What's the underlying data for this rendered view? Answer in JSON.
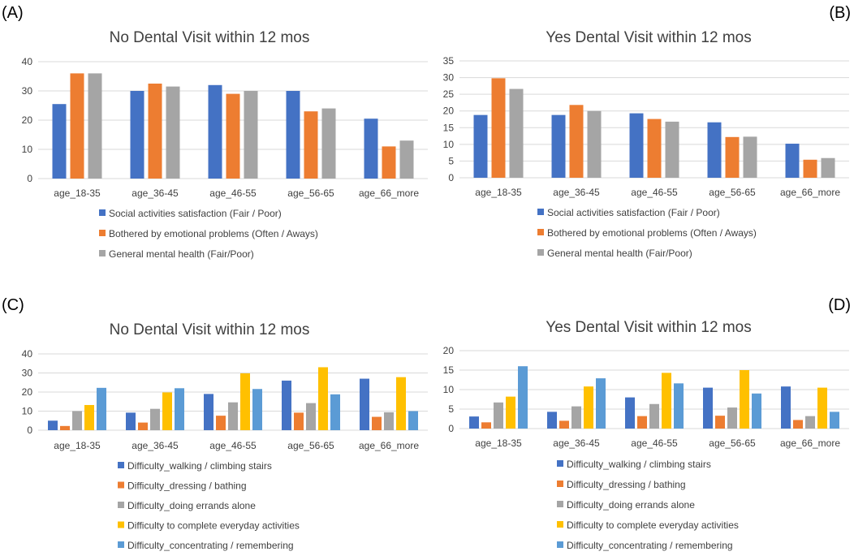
{
  "figure": {
    "panel_labels": [
      "(A)",
      "(B)",
      "(C)",
      "(D)"
    ]
  },
  "colors": {
    "blue": "#4472C4",
    "orange": "#ED7D31",
    "gray": "#A5A5A5",
    "yellow": "#FFC000",
    "lightblue": "#5B9BD5"
  },
  "chart_data": [
    {
      "panel": "(A)",
      "type": "bar",
      "title": "No Dental Visit within 12 mos",
      "categories": [
        "age_18-35",
        "age_36-45",
        "age_46-55",
        "age_56-65",
        "age_66_more"
      ],
      "ylim": [
        0,
        40
      ],
      "yticks": [
        0,
        10,
        20,
        30,
        40
      ],
      "grid": true,
      "legend_position": "bottom",
      "series": [
        {
          "name": "Social activities satisfaction (Fair / Poor)",
          "color": "#4472C4",
          "values": [
            25.5,
            30,
            32,
            30,
            20.5
          ]
        },
        {
          "name": "Bothered by emotional problems (Often / Aways)",
          "color": "#ED7D31",
          "values": [
            36,
            32.5,
            29,
            23,
            11
          ]
        },
        {
          "name": "General mental health (Fair/Poor)",
          "color": "#A5A5A5",
          "values": [
            36,
            31.5,
            30,
            24,
            13
          ]
        }
      ]
    },
    {
      "panel": "(B)",
      "type": "bar",
      "title": "Yes Dental Visit within 12 mos",
      "categories": [
        "age_18-35",
        "age_36-45",
        "age_46-55",
        "age_56-65",
        "age_66_more"
      ],
      "ylim": [
        0,
        35
      ],
      "yticks": [
        0,
        5,
        10,
        15,
        20,
        25,
        30,
        35
      ],
      "grid": true,
      "legend_position": "bottom",
      "series": [
        {
          "name": "Social activities satisfaction (Fair / Poor)",
          "color": "#4472C4",
          "values": [
            18.8,
            18.8,
            19.3,
            16.6,
            10.2
          ]
        },
        {
          "name": "Bothered by emotional problems (Often / Aways)",
          "color": "#ED7D31",
          "values": [
            29.8,
            21.8,
            17.6,
            12.2,
            5.4
          ]
        },
        {
          "name": "General mental health (Fair/Poor)",
          "color": "#A5A5A5",
          "values": [
            26.6,
            20,
            16.8,
            12.3,
            5.9
          ]
        }
      ]
    },
    {
      "panel": "(C)",
      "type": "bar",
      "title": "No Dental Visit within 12 mos",
      "categories": [
        "age_18-35",
        "age_36-45",
        "age_46-55",
        "age_56-65",
        "age_66_more"
      ],
      "ylim": [
        0,
        40
      ],
      "yticks": [
        0,
        10,
        20,
        30,
        40
      ],
      "grid": true,
      "legend_position": "bottom",
      "series": [
        {
          "name": "Difficulty_walking / climbing stairs",
          "color": "#4472C4",
          "values": [
            5,
            9.2,
            19,
            26,
            27
          ]
        },
        {
          "name": "Difficulty_dressing / bathing",
          "color": "#ED7D31",
          "values": [
            2.2,
            4,
            7.6,
            9.2,
            7
          ]
        },
        {
          "name": "Difficulty_doing errands alone",
          "color": "#A5A5A5",
          "values": [
            10,
            11.2,
            14.6,
            14.2,
            9.4
          ]
        },
        {
          "name": "Difficulty to complete everyday activities",
          "color": "#FFC000",
          "values": [
            13.2,
            19.8,
            29.8,
            33,
            27.8
          ]
        },
        {
          "name": "Difficulty_concentrating / remembering",
          "color": "#5B9BD5",
          "values": [
            22.2,
            22,
            21.6,
            18.8,
            10
          ]
        }
      ]
    },
    {
      "panel": "(D)",
      "type": "bar",
      "title": "Yes Dental Visit within 12 mos",
      "categories": [
        "age_18-35",
        "age_36-45",
        "age_46-55",
        "age_56-65",
        "age_66_more"
      ],
      "ylim": [
        0,
        20
      ],
      "yticks": [
        0,
        5,
        10,
        15,
        20
      ],
      "grid": true,
      "legend_position": "bottom",
      "series": [
        {
          "name": "Difficulty_walking / climbing stairs",
          "color": "#4472C4",
          "values": [
            3.1,
            4.3,
            8,
            10.5,
            10.8
          ]
        },
        {
          "name": "Difficulty_dressing / bathing",
          "color": "#ED7D31",
          "values": [
            1.6,
            2,
            3.2,
            3.3,
            2.2
          ]
        },
        {
          "name": "Difficulty_doing errands alone",
          "color": "#A5A5A5",
          "values": [
            6.7,
            5.7,
            6.3,
            5.4,
            3.2
          ]
        },
        {
          "name": "Difficulty to complete everyday activities",
          "color": "#FFC000",
          "values": [
            8.2,
            10.8,
            14.3,
            15,
            10.5
          ]
        },
        {
          "name": "Difficulty_concentrating / remembering",
          "color": "#5B9BD5",
          "values": [
            16,
            12.9,
            11.6,
            9,
            4.3
          ]
        }
      ]
    }
  ]
}
